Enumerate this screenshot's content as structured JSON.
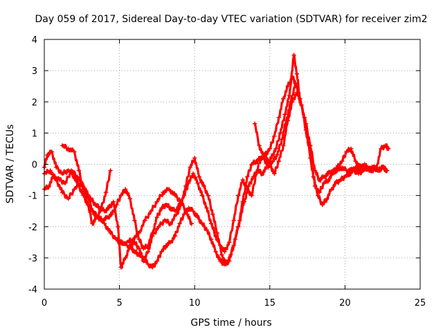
{
  "chart_data": {
    "type": "scatter",
    "title": "Day 059 of 2017, Sidereal Day-to-day VTEC variation (SDTVAR) for receiver zim2",
    "xlabel": "GPS time / hours",
    "ylabel": "SDTVAR / TECUs",
    "xlim": [
      0,
      25
    ],
    "ylim": [
      -4,
      4
    ],
    "xticks": [
      0,
      5,
      10,
      15,
      20,
      25
    ],
    "yticks": [
      -4,
      -3,
      -2,
      -1,
      0,
      1,
      2,
      3,
      4
    ],
    "grid": true,
    "marker": "+",
    "color": "#ff0000",
    "series": [
      {
        "x": [
          0.0,
          0.2,
          0.5,
          0.8,
          1.2,
          1.6,
          2.0,
          2.3,
          2.6,
          2.9,
          3.2,
          3.6,
          4.0,
          4.4,
          4.8,
          5.0,
          5.2,
          5.5,
          5.8,
          6.0,
          6.3,
          6.6,
          6.9,
          7.2,
          7.5,
          7.8,
          8.1,
          8.4,
          8.7,
          9.0,
          9.3,
          9.6,
          9.9,
          10.2,
          10.5,
          10.8,
          11.1,
          11.4,
          11.7,
          12.0,
          12.3,
          12.6,
          12.9,
          13.2,
          13.5,
          13.8,
          14.1,
          14.4,
          14.7,
          15.0,
          15.3,
          15.6,
          15.9,
          16.2,
          16.5,
          16.7,
          16.9,
          17.1,
          17.4,
          17.7,
          18.0,
          18.3,
          18.6,
          18.9,
          19.2,
          19.5,
          19.8,
          20.1,
          20.4,
          20.7,
          21.0,
          21.3,
          21.6,
          21.9,
          22.2,
          22.5,
          22.8
        ],
        "y": [
          -0.1,
          0.3,
          0.4,
          -0.1,
          -0.3,
          -0.2,
          -0.4,
          -0.7,
          -1.0,
          -1.3,
          -1.5,
          -1.7,
          -1.9,
          -2.2,
          -2.4,
          -2.5,
          -2.5,
          -2.6,
          -2.7,
          -2.8,
          -2.9,
          -3.0,
          -3.2,
          -3.3,
          -3.1,
          -2.8,
          -2.6,
          -2.5,
          -2.3,
          -1.9,
          -1.6,
          -1.4,
          -1.5,
          -1.7,
          -1.9,
          -2.1,
          -2.4,
          -2.8,
          -3.1,
          -3.2,
          -3.1,
          -2.6,
          -2.0,
          -1.2,
          -0.4,
          0.0,
          0.1,
          0.2,
          0.3,
          0.5,
          0.9,
          1.5,
          2.1,
          2.5,
          2.8,
          2.6,
          2.3,
          1.9,
          1.3,
          0.6,
          -0.2,
          -0.5,
          -0.4,
          -0.3,
          -0.2,
          -0.2,
          -0.1,
          -0.2,
          -0.2,
          -0.1,
          -0.2,
          -0.1,
          -0.2,
          -0.1,
          -0.2,
          -0.1,
          -0.2
        ]
      },
      {
        "x": [
          0.0,
          0.3,
          0.6,
          1.0,
          1.4,
          1.8,
          2.2,
          2.5,
          2.8,
          3.1,
          3.4,
          3.7,
          4.0,
          4.3,
          4.6,
          4.9,
          5.1,
          5.4,
          5.7,
          6.0,
          6.3,
          6.6,
          6.9,
          7.2,
          7.6,
          8.0,
          8.4,
          8.8,
          9.1,
          9.4,
          9.7,
          10.0,
          10.3,
          10.6,
          10.9,
          11.2,
          11.5,
          11.8,
          12.1,
          12.4,
          12.7,
          13.0,
          13.3,
          13.6,
          13.9,
          14.2,
          14.5,
          14.8,
          15.1,
          15.4,
          15.7,
          16.0,
          16.3,
          16.6,
          16.8,
          17.0,
          17.3,
          17.6,
          17.9,
          18.2,
          18.5,
          18.8,
          19.1,
          19.4,
          19.7,
          20.0,
          20.3,
          20.6,
          20.9,
          21.2,
          21.5,
          21.8,
          22.1,
          22.4,
          22.7,
          22.9
        ],
        "y": [
          -0.8,
          -0.7,
          -0.4,
          -0.5,
          -0.6,
          -0.2,
          -0.4,
          -0.6,
          -0.9,
          -1.1,
          -1.3,
          -1.4,
          -1.5,
          -1.4,
          -1.2,
          -2.0,
          -3.3,
          -3.0,
          -2.6,
          -2.5,
          -2.7,
          -3.1,
          -2.8,
          -2.3,
          -2.0,
          -1.8,
          -1.9,
          -1.6,
          -1.3,
          -0.7,
          -0.1,
          0.2,
          -0.4,
          -0.7,
          -1.0,
          -1.6,
          -2.2,
          -2.9,
          -3.2,
          -2.9,
          -2.4,
          -1.8,
          -1.2,
          -0.7,
          -0.4,
          -0.2,
          -0.3,
          -0.1,
          0.2,
          0.5,
          1.0,
          1.6,
          2.2,
          3.5,
          2.9,
          2.1,
          1.5,
          0.7,
          -0.4,
          -1.0,
          -1.3,
          -1.1,
          -0.8,
          -0.6,
          -0.5,
          -0.4,
          -0.3,
          -0.2,
          -0.3,
          -0.2,
          -0.1,
          -0.2,
          -0.1,
          0.5,
          0.6,
          0.5
        ]
      },
      {
        "x": [
          0.0,
          0.4,
          0.8,
          1.2,
          1.6,
          2.0,
          2.4,
          2.7,
          3.0,
          3.3,
          3.6,
          3.9,
          4.2,
          4.5,
          4.8,
          5.1,
          5.4,
          5.7,
          6.0,
          6.3,
          6.6,
          6.9,
          7.2,
          7.5,
          7.8,
          8.1,
          8.4,
          8.7,
          9.0,
          9.3,
          9.6,
          9.9,
          10.2,
          10.5,
          10.8,
          11.1,
          11.4,
          11.7,
          12.0,
          12.3,
          12.6,
          12.9,
          13.2,
          13.5,
          13.8,
          14.1,
          14.4,
          14.7,
          15.0,
          15.3,
          15.6,
          15.9,
          16.2,
          16.5,
          16.8,
          17.1,
          17.4,
          17.7,
          18.0,
          18.3,
          18.6,
          18.9,
          19.2,
          19.5,
          19.8,
          20.1,
          20.4,
          20.7,
          21.0,
          21.3,
          21.6,
          21.9,
          22.2,
          22.5,
          22.8
        ],
        "y": [
          -0.3,
          -0.2,
          -0.5,
          -0.9,
          -1.1,
          -0.8,
          -0.6,
          -0.8,
          -1.2,
          -1.6,
          -1.7,
          -1.8,
          -1.7,
          -1.6,
          -1.3,
          -1.0,
          -0.8,
          -1.1,
          -1.8,
          -2.4,
          -2.7,
          -2.6,
          -2.2,
          -1.7,
          -1.4,
          -1.3,
          -1.4,
          -1.5,
          -1.3,
          -1.0,
          -0.6,
          -0.3,
          -0.6,
          -1.0,
          -1.4,
          -1.9,
          -2.3,
          -2.6,
          -2.8,
          -2.5,
          -1.8,
          -1.0,
          -0.5,
          -0.8,
          -1.0,
          -0.3,
          0.2,
          0.3,
          0.0,
          -0.3,
          0.1,
          0.6,
          1.4,
          2.0,
          2.3,
          1.9,
          1.1,
          0.2,
          -0.7,
          -0.9,
          -0.6,
          -0.5,
          -0.3,
          -0.1,
          0.1,
          0.4,
          0.5,
          0.1,
          -0.1,
          0.0,
          -0.2,
          -0.1,
          -0.2,
          -0.1,
          -0.2
        ]
      },
      {
        "x": [
          1.2,
          1.6,
          2.0,
          2.3,
          2.6,
          2.9,
          3.2,
          3.5,
          3.8,
          4.1,
          4.4
        ],
        "y": [
          0.6,
          0.5,
          0.4,
          -0.2,
          -0.8,
          -1.3,
          -1.9,
          -1.7,
          -1.4,
          -0.9,
          -0.2
        ]
      },
      {
        "x": [
          5.5,
          5.9,
          6.3,
          6.7,
          7.1,
          7.5,
          7.9,
          8.3,
          8.7,
          9.1,
          9.5,
          9.8
        ],
        "y": [
          -2.5,
          -2.4,
          -2.2,
          -1.8,
          -1.5,
          -1.2,
          -0.9,
          -0.8,
          -1.0,
          -1.2,
          -1.6,
          -1.9
        ]
      },
      {
        "x": [
          14.0,
          14.3,
          14.6,
          14.9,
          15.2,
          15.5,
          15.8,
          16.1,
          16.4,
          16.7
        ],
        "y": [
          1.3,
          0.6,
          0.2,
          -0.1,
          0.1,
          0.3,
          0.8,
          1.4,
          2.0,
          2.6
        ]
      }
    ]
  }
}
